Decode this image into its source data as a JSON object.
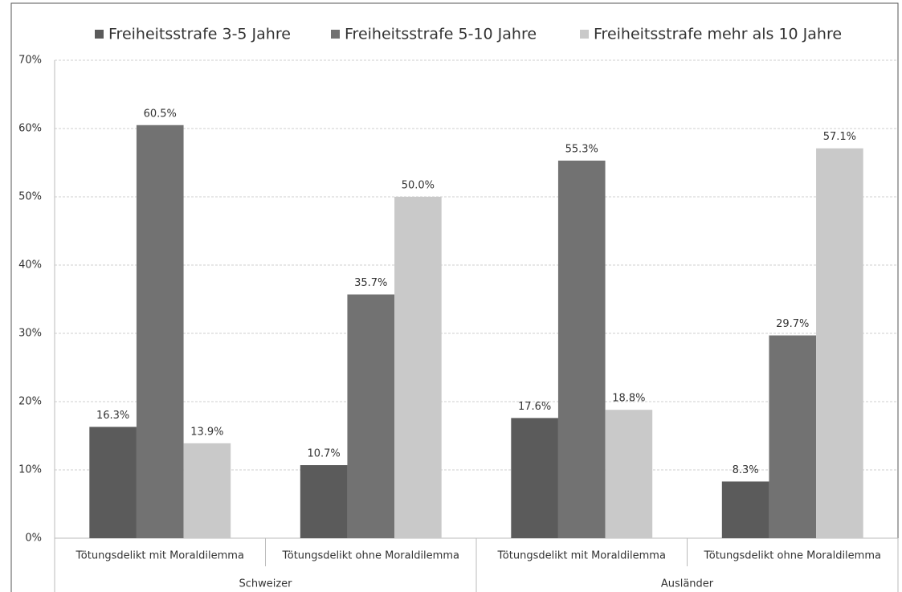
{
  "chart_data": {
    "type": "bar",
    "category_groups": [
      {
        "name": "Schweizer",
        "categories": [
          "Tötungsdelikt mit Moraldilemma",
          "Tötungsdelikt ohne Moraldilemma"
        ]
      },
      {
        "name": "Ausländer",
        "categories": [
          "Tötungsdelikt mit Moraldilemma",
          "Tötungsdelikt ohne Moraldilemma"
        ]
      }
    ],
    "series": [
      {
        "name": "Freiheitsstrafe 3-5 Jahre",
        "color": "#5b5b5b",
        "values": [
          16.3,
          10.7,
          17.6,
          8.3
        ],
        "value_labels": [
          "16.3%",
          "10.7%",
          "17.6%",
          "8.3%"
        ]
      },
      {
        "name": "Freiheitsstrafe 5-10 Jahre",
        "color": "#727272",
        "values": [
          60.5,
          35.7,
          55.3,
          29.7
        ],
        "value_labels": [
          "60.5%",
          "35.7%",
          "55.3%",
          "29.7%"
        ]
      },
      {
        "name": "Freiheitsstrafe mehr als 10 Jahre",
        "color": "#c9c9c9",
        "values": [
          13.9,
          50.0,
          18.8,
          57.1
        ],
        "value_labels": [
          "13.9%",
          "50.0%",
          "18.8%",
          "57.1%"
        ]
      }
    ],
    "ylim": [
      0,
      70
    ],
    "yticks": [
      {
        "value": 0,
        "label": "0%"
      },
      {
        "value": 10,
        "label": "10%"
      },
      {
        "value": 20,
        "label": "20%"
      },
      {
        "value": 30,
        "label": "30%"
      },
      {
        "value": 40,
        "label": "40%"
      },
      {
        "value": 50,
        "label": "50%"
      },
      {
        "value": 60,
        "label": "60%"
      },
      {
        "value": 70,
        "label": "70%"
      }
    ],
    "grid": true,
    "legend": "top"
  }
}
